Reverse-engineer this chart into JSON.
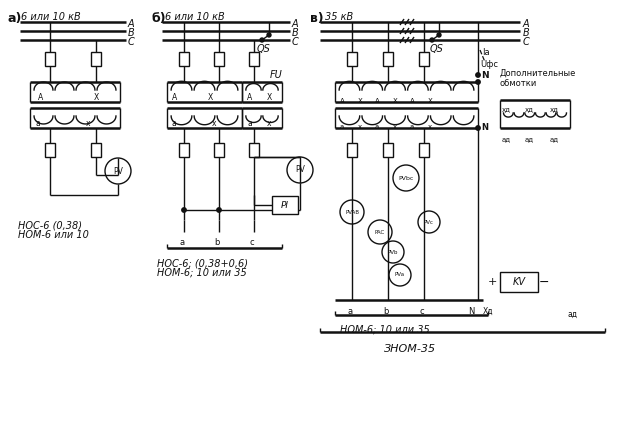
{
  "bg_color": "#ffffff",
  "line_color": "#111111",
  "fig_width": 6.38,
  "fig_height": 4.34,
  "a_title": "а)",
  "b_title": "б)",
  "c_title": "в)",
  "a_voltage": "6 или 10 кВ",
  "b_voltage": "6 или 10 кВ",
  "c_voltage": "35 кВ",
  "label_dop": "Дополнительные\nобмотки",
  "label_Ia": "Iа",
  "label_Ufc": "Uфс",
  "a_bottom1": "НОС-6 (0,38)",
  "a_bottom2": "НОМ-6 или 10",
  "b_bottom1": "НОС-6; (0,38+0,6)",
  "b_bottom2": "НОМ-6; 10 или 35",
  "c_bottom1": "НОМ-6; 10 или 35",
  "c_bottom2": "ЗНОМ-35"
}
